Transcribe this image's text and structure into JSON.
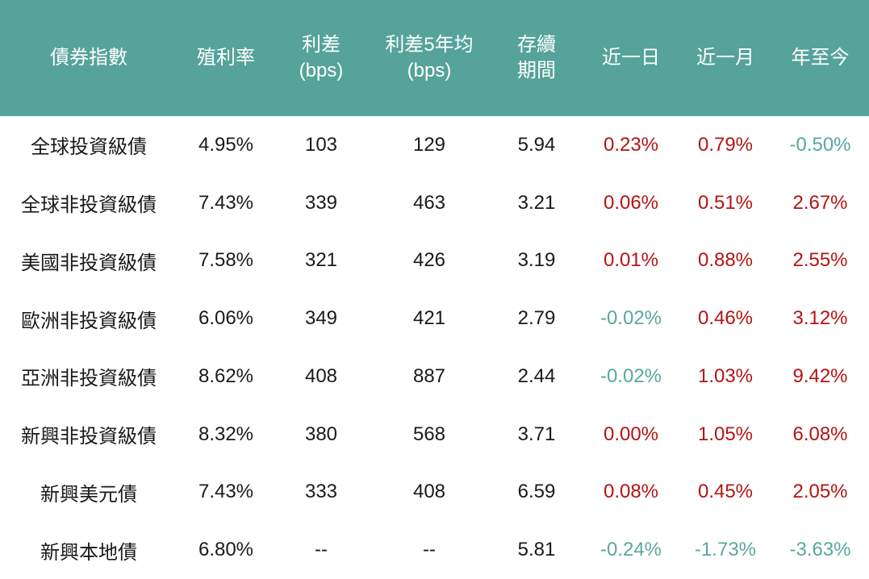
{
  "colors": {
    "header_bg": "#55a39a",
    "header_text": "#ffffff",
    "body_text": "#1a1a1a",
    "positive_change": "#b41414",
    "negative_change": "#5aa79d"
  },
  "chart_data": {
    "type": "table",
    "columns": [
      {
        "l1": "債券指數",
        "l2": ""
      },
      {
        "l1": "殖利率",
        "l2": ""
      },
      {
        "l1": "利差",
        "l2": "(bps)"
      },
      {
        "l1": "利差5年均",
        "l2": "(bps)"
      },
      {
        "l1": "存續",
        "l2": "期間"
      },
      {
        "l1": "近一日",
        "l2": ""
      },
      {
        "l1": "近一月",
        "l2": ""
      },
      {
        "l1": "年至今",
        "l2": ""
      }
    ],
    "rows": [
      {
        "cells": [
          "全球投資級債",
          "4.95%",
          "103",
          "129",
          "5.94",
          "0.23%",
          "0.79%",
          "-0.50%"
        ]
      },
      {
        "cells": [
          "全球非投資級債",
          "7.43%",
          "339",
          "463",
          "3.21",
          "0.06%",
          "0.51%",
          "2.67%"
        ]
      },
      {
        "cells": [
          "美國非投資級債",
          "7.58%",
          "321",
          "426",
          "3.19",
          "0.01%",
          "0.88%",
          "2.55%"
        ]
      },
      {
        "cells": [
          "歐洲非投資級債",
          "6.06%",
          "349",
          "421",
          "2.79",
          "-0.02%",
          "0.46%",
          "3.12%"
        ]
      },
      {
        "cells": [
          "亞洲非投資級債",
          "8.62%",
          "408",
          "887",
          "2.44",
          "-0.02%",
          "1.03%",
          "9.42%"
        ]
      },
      {
        "cells": [
          "新興非投資級債",
          "8.32%",
          "380",
          "568",
          "3.71",
          "0.00%",
          "1.05%",
          "6.08%"
        ]
      },
      {
        "cells": [
          "新興美元債",
          "7.43%",
          "333",
          "408",
          "6.59",
          "0.08%",
          "0.45%",
          "2.05%"
        ]
      },
      {
        "cells": [
          "新興本地債",
          "6.80%",
          "--",
          "--",
          "5.81",
          "-0.24%",
          "-1.73%",
          "-3.63%"
        ]
      }
    ]
  }
}
